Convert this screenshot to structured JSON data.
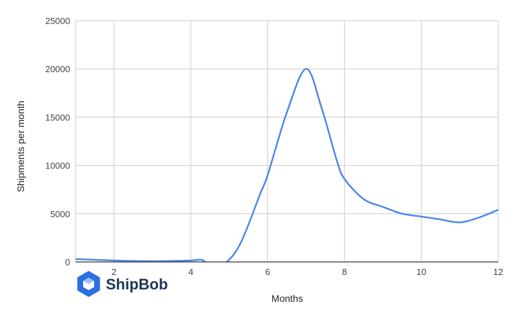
{
  "chart_data": {
    "type": "line",
    "title": "",
    "xlabel": "Months",
    "ylabel": "Shipments per month",
    "xlim": [
      1,
      12
    ],
    "ylim": [
      0,
      25000
    ],
    "xticks": [
      2,
      4,
      6,
      8,
      10,
      12
    ],
    "yticks": [
      0,
      5000,
      10000,
      15000,
      20000,
      25000
    ],
    "grid": true,
    "series": [
      {
        "color": "#4a86e8",
        "x": [
          1,
          2,
          3,
          3.5,
          4,
          4.3,
          4.5,
          4.9,
          5.3,
          5.8,
          6,
          6.5,
          7,
          7.4,
          7.8,
          8,
          8.5,
          9,
          9.5,
          10,
          10.5,
          11,
          11.5,
          12
        ],
        "y": [
          300,
          150,
          80,
          100,
          150,
          200,
          -400,
          -100,
          2000,
          7000,
          9000,
          15500,
          20000,
          16000,
          10500,
          8600,
          6500,
          5700,
          5000,
          4700,
          4400,
          4100,
          4600,
          5400
        ]
      }
    ]
  },
  "logo": {
    "text": "ShipBob",
    "color": "#1f3556",
    "accent": "#2d6fe0",
    "icon": "shipbob-box-icon"
  }
}
